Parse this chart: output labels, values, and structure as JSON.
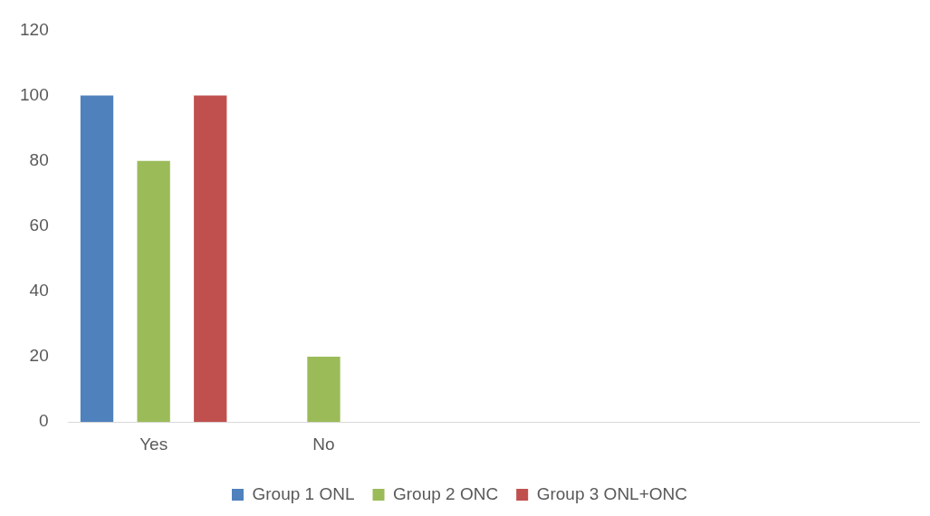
{
  "chart_data": {
    "type": "bar",
    "categories": [
      "Yes",
      "No",
      null,
      null,
      null
    ],
    "series": [
      {
        "name": "Group 1 ONL",
        "color": "#4f81bd",
        "values": [
          100,
          0,
          null,
          null,
          null
        ]
      },
      {
        "name": "Group 2 ONC",
        "color": "#9bbb59",
        "values": [
          80,
          20,
          null,
          null,
          null
        ]
      },
      {
        "name": "Group 3 ONL+ONC",
        "color": "#c0504d",
        "values": [
          100,
          0,
          null,
          null,
          null
        ]
      }
    ],
    "ylim": [
      0,
      120
    ],
    "yticks": [
      0,
      20,
      40,
      60,
      80,
      100,
      120
    ],
    "grid": false,
    "legend": "bottom"
  }
}
